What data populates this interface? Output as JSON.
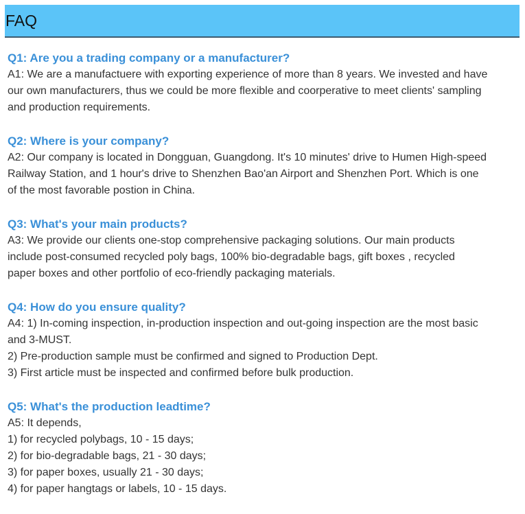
{
  "header": {
    "title": "FAQ",
    "color": "#5bc4f8"
  },
  "faq": [
    {
      "q": "Q1: Are you a trading company or a manufacturer?",
      "a": [
        "A1: We are a manufactuere with exporting experience of more than 8 years. We invested and have",
        "our own manufacturers, thus we could be more flexible and coorperative to meet clients' sampling",
        "and production requirements."
      ]
    },
    {
      "q": "Q2: Where is your company?",
      "a": [
        "A2: Our company is located in Dongguan, Guangdong. It's 10 minutes' drive to Humen High-speed",
        "Railway Station, and 1 hour's drive to Shenzhen Bao'an Airport and Shenzhen Port. Which is one",
        "of the most favorable postion in China."
      ]
    },
    {
      "q": "Q3: What's your main products?",
      "a": [
        "A3: We provide our clients one-stop comprehensive packaging solutions. Our main products",
        "include post-consumed recycled poly bags, 100% bio-degradable bags, gift boxes , recycled",
        "paper boxes and other portfolio of eco-friendly packaging materials."
      ]
    },
    {
      "q": "Q4: How do you ensure quality?",
      "a": [
        "A4: 1) In-coming inspection, in-production inspection and out-going inspection are the most basic",
        "and 3-MUST.",
        "2) Pre-production sample must be confirmed and signed to Production Dept.",
        "3) First article must be inspected and confirmed before bulk production."
      ]
    },
    {
      "q": "Q5: What's the production leadtime?",
      "a": [
        "A5: It depends,",
        "1) for recycled polybags, 10 - 15 days;",
        "2) for bio-degradable bags, 21 - 30 days;",
        "3) for paper boxes, usually 21 - 30 days;",
        "4) for paper hangtags or labels, 10 - 15 days."
      ]
    }
  ]
}
